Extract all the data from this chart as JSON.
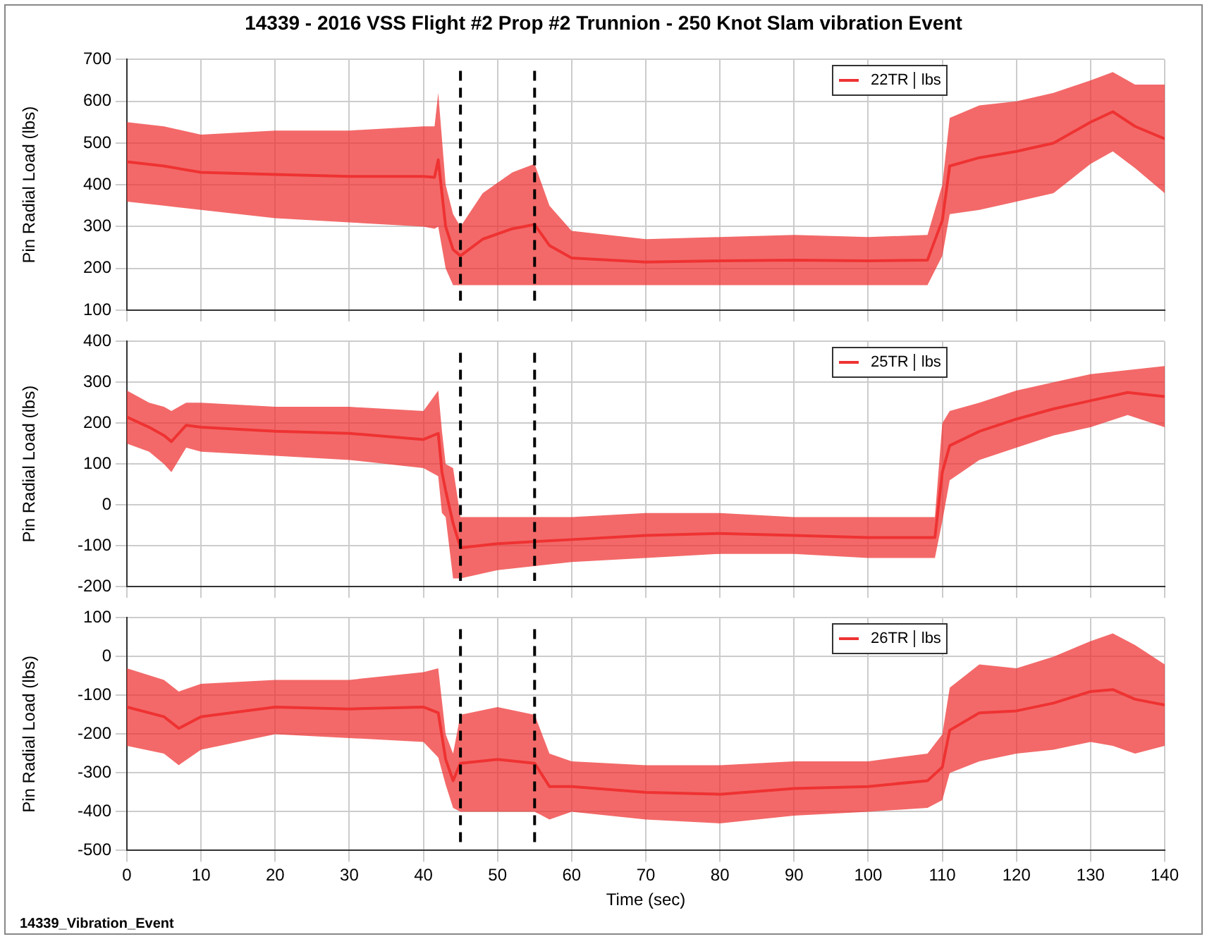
{
  "chart_data": [
    {
      "type": "line",
      "title": "14339 - 2016 VSS Flight #2 Prop #2 Trunnion - 250 Knot Slam vibration Event",
      "ylabel": "Pin Radial Load (lbs)",
      "xlim": [
        0,
        140
      ],
      "xticks": [
        0,
        10,
        20,
        30,
        40,
        50,
        60,
        70,
        80,
        90,
        100,
        110,
        120,
        130,
        140
      ],
      "ylim": [
        100,
        700
      ],
      "yticks": [
        100,
        200,
        300,
        400,
        500,
        600,
        700
      ],
      "grid": true,
      "legend": "top right",
      "tick_labels": "y",
      "annotations": [
        "lbs"
      ],
      "ref_lines": [
        {
          "axis": "x",
          "value": 45,
          "color": "#000000",
          "line_style": "dashed"
        },
        {
          "axis": "x",
          "value": 55,
          "color": "#000000",
          "line_style": "dashed"
        }
      ],
      "series": [
        {
          "name": "22TR",
          "color": "#ee3333",
          "x": [
            0,
            5,
            10,
            20,
            30,
            40,
            41.5,
            42,
            43,
            44,
            45,
            48,
            52,
            55,
            57,
            60,
            70,
            80,
            90,
            100,
            108,
            110,
            111,
            115,
            120,
            125,
            130,
            133,
            136,
            140
          ],
          "values": [
            455,
            445,
            430,
            425,
            420,
            420,
            418,
            460,
            300,
            245,
            230,
            270,
            295,
            305,
            255,
            225,
            215,
            218,
            220,
            218,
            220,
            315,
            445,
            465,
            480,
            500,
            550,
            575,
            540,
            510
          ],
          "lower": [
            360,
            350,
            340,
            320,
            310,
            300,
            295,
            300,
            200,
            160,
            160,
            160,
            160,
            160,
            160,
            160,
            160,
            160,
            160,
            160,
            160,
            230,
            330,
            340,
            360,
            380,
            450,
            480,
            440,
            380
          ],
          "upper": [
            550,
            540,
            520,
            530,
            530,
            540,
            540,
            620,
            400,
            330,
            300,
            380,
            430,
            450,
            350,
            290,
            270,
            275,
            280,
            275,
            280,
            400,
            560,
            590,
            600,
            620,
            650,
            670,
            640,
            640
          ]
        }
      ]
    },
    {
      "type": "line",
      "ylabel": "Pin Radial Load (lbs)",
      "xlim": [
        0,
        140
      ],
      "xticks": [
        0,
        10,
        20,
        30,
        40,
        50,
        60,
        70,
        80,
        90,
        100,
        110,
        120,
        130,
        140
      ],
      "ylim": [
        -200,
        400
      ],
      "yticks": [
        -200,
        -100,
        0,
        100,
        200,
        300,
        400
      ],
      "grid": true,
      "legend": "top right",
      "tick_labels": "y",
      "annotations": [
        "lbs"
      ],
      "ref_lines": [
        {
          "axis": "x",
          "value": 45,
          "color": "#000000",
          "line_style": "dashed"
        },
        {
          "axis": "x",
          "value": 55,
          "color": "#000000",
          "line_style": "dashed"
        }
      ],
      "series": [
        {
          "name": "25TR",
          "color": "#ee3333",
          "x": [
            0,
            3,
            5,
            6,
            8,
            10,
            20,
            30,
            40,
            42,
            42.5,
            43,
            44,
            45,
            50,
            55,
            60,
            70,
            80,
            90,
            100,
            109,
            110,
            111,
            115,
            120,
            125,
            130,
            135,
            140
          ],
          "values": [
            215,
            190,
            170,
            155,
            195,
            190,
            180,
            175,
            160,
            175,
            80,
            35,
            -45,
            -105,
            -95,
            -90,
            -85,
            -75,
            -70,
            -75,
            -80,
            -80,
            80,
            145,
            180,
            210,
            235,
            255,
            275,
            265
          ],
          "lower": [
            150,
            130,
            100,
            80,
            140,
            130,
            120,
            110,
            90,
            70,
            -20,
            -30,
            -180,
            -180,
            -160,
            -150,
            -140,
            -130,
            -120,
            -120,
            -130,
            -130,
            -40,
            60,
            110,
            140,
            170,
            190,
            220,
            190
          ],
          "upper": [
            280,
            250,
            240,
            230,
            250,
            250,
            240,
            240,
            230,
            280,
            180,
            100,
            90,
            -30,
            -30,
            -30,
            -30,
            -20,
            -20,
            -30,
            -30,
            -30,
            200,
            230,
            250,
            280,
            300,
            320,
            330,
            340
          ]
        }
      ]
    },
    {
      "type": "line",
      "ylabel": "Pin Radial Load (lbs)",
      "xlabel": "Time (sec)",
      "xlim": [
        0,
        140
      ],
      "xticks": [
        0,
        10,
        20,
        30,
        40,
        50,
        60,
        70,
        80,
        90,
        100,
        110,
        120,
        130,
        140
      ],
      "ylim": [
        -500,
        100
      ],
      "yticks": [
        -500,
        -400,
        -300,
        -200,
        -100,
        0,
        100
      ],
      "grid": true,
      "legend": "top right",
      "annotations": [
        "lbs",
        "14339_Vibration_Event"
      ],
      "ref_lines": [
        {
          "axis": "x",
          "value": 45,
          "color": "#000000",
          "line_style": "dashed"
        },
        {
          "axis": "x",
          "value": 55,
          "color": "#000000",
          "line_style": "dashed"
        }
      ],
      "series": [
        {
          "name": "26TR",
          "color": "#ee3333",
          "x": [
            0,
            5,
            7,
            10,
            20,
            30,
            40,
            42,
            43,
            44,
            45,
            50,
            55,
            57,
            60,
            70,
            80,
            90,
            100,
            108,
            110,
            111,
            115,
            120,
            125,
            130,
            133,
            136,
            140
          ],
          "values": [
            -130,
            -155,
            -185,
            -155,
            -130,
            -135,
            -130,
            -145,
            -265,
            -320,
            -275,
            -265,
            -275,
            -335,
            -335,
            -350,
            -355,
            -340,
            -335,
            -320,
            -285,
            -190,
            -145,
            -140,
            -120,
            -90,
            -85,
            -110,
            -125
          ],
          "lower": [
            -230,
            -250,
            -280,
            -240,
            -200,
            -210,
            -220,
            -260,
            -330,
            -390,
            -400,
            -400,
            -400,
            -420,
            -400,
            -420,
            -430,
            -410,
            -400,
            -390,
            -370,
            -300,
            -270,
            -250,
            -240,
            -220,
            -230,
            -250,
            -230
          ],
          "upper": [
            -30,
            -60,
            -90,
            -70,
            -60,
            -60,
            -40,
            -30,
            -200,
            -250,
            -150,
            -130,
            -150,
            -250,
            -270,
            -280,
            -280,
            -270,
            -270,
            -250,
            -200,
            -80,
            -20,
            -30,
            0,
            40,
            60,
            30,
            -20
          ]
        }
      ]
    }
  ]
}
